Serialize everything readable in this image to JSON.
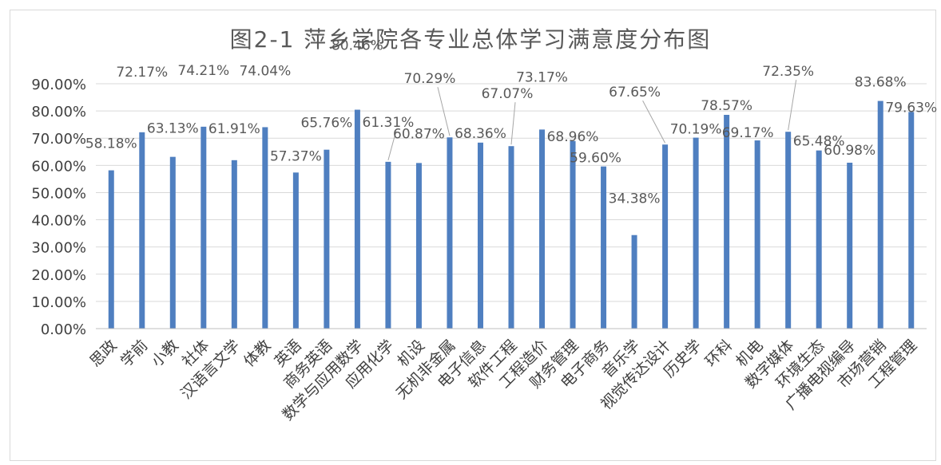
{
  "chart_data": {
    "type": "bar",
    "title": "图2-1 萍乡学院各专业总体学习满意度分布图",
    "xlabel": "",
    "ylabel": "",
    "ylim": [
      0,
      90
    ],
    "yticks": [
      "0.00%",
      "10.00%",
      "20.00%",
      "30.00%",
      "40.00%",
      "50.00%",
      "60.00%",
      "70.00%",
      "80.00%",
      "90.00%"
    ],
    "grid": true,
    "legend": "none",
    "bar_color": "#4f7fc0",
    "categories": [
      "思政",
      "学前",
      "小教",
      "社体",
      "汉语言文学",
      "体教",
      "英语",
      "商务英语",
      "数学与应用数学",
      "应用化学",
      "机设",
      "无机非金属",
      "电子信息",
      "软件工程",
      "工程造价",
      "财务管理",
      "电子商务",
      "音乐学",
      "视觉传达设计",
      "历史学",
      "环科",
      "机电",
      "数字媒体",
      "环境生态",
      "广播电视编导",
      "市场营销",
      "工程管理"
    ],
    "values": [
      58.18,
      72.17,
      63.13,
      74.21,
      61.91,
      74.04,
      57.37,
      65.76,
      80.46,
      61.31,
      60.87,
      70.29,
      68.36,
      67.07,
      73.17,
      68.96,
      59.6,
      34.38,
      67.65,
      70.19,
      78.57,
      69.17,
      72.35,
      65.48,
      60.98,
      83.68,
      79.63
    ],
    "labels": [
      "58.18%",
      "72.17%",
      "63.13%",
      "74.21%",
      "61.91%",
      "74.04%",
      "57.37%",
      "65.76%",
      "80.46%",
      "61.31%",
      "60.87%",
      "70.29%",
      "68.36%",
      "67.07%",
      "73.17%",
      "68.96%",
      "59.60%",
      "34.38%",
      "67.65%",
      "70.19%",
      "78.57%",
      "69.17%",
      "72.35%",
      "65.48%",
      "60.98%",
      "83.68%",
      "79.63%"
    ]
  }
}
